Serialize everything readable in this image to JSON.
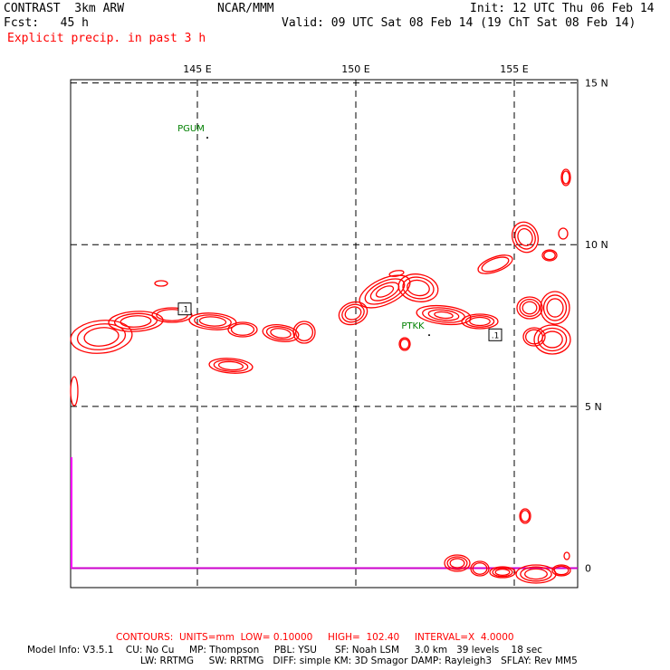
{
  "header": {
    "model": "CONTRAST  3km ARW",
    "center": "NCAR/MMM",
    "init": "Init: 12 UTC Thu 06 Feb 14",
    "fcst": "Fcst:   45 h",
    "valid": "Valid: 09 UTC Sat 08 Feb 14 (19 ChT Sat 08 Feb 14)",
    "field": "Explicit precip. in past 3 h"
  },
  "map": {
    "lon_labels": [
      "145 E",
      "150 E",
      "155 E"
    ],
    "lat_labels": [
      "15 N",
      "10 N",
      "5 N",
      "0"
    ],
    "stations": [
      {
        "id": "PGUM",
        "lon": 144.8,
        "lat": 13.5
      },
      {
        "id": "PTKK",
        "lon": 151.8,
        "lat": 7.4
      }
    ],
    "contour_labels": [
      {
        "text": ".1",
        "lon": 144.6,
        "lat": 8.0
      },
      {
        "text": ".1",
        "lon": 154.4,
        "lat": 7.2
      }
    ],
    "colors": {
      "contour": "#ff0000",
      "station": "#008000",
      "equator": "#cc00cc",
      "grid": "#000000"
    },
    "lon_range": [
      141.0,
      157.0
    ],
    "lat_range": [
      -0.6,
      15.1
    ]
  },
  "footer": {
    "contours": "CONTOURS:  UNITS=mm  LOW= 0.10000     HIGH=  102.40     INTERVAL=X  4.0000",
    "model_line1": "Model Info: V3.5.1    CU: No Cu     MP: Thompson     PBL: YSU      SF: Noah LSM     3.0 km   39 levels    18 sec",
    "model_line2": "LW: RRTMG     SW: RRTMG   DIFF: simple KM: 3D Smagor DAMP: Rayleigh3   SFLAY: Rev MM5"
  }
}
